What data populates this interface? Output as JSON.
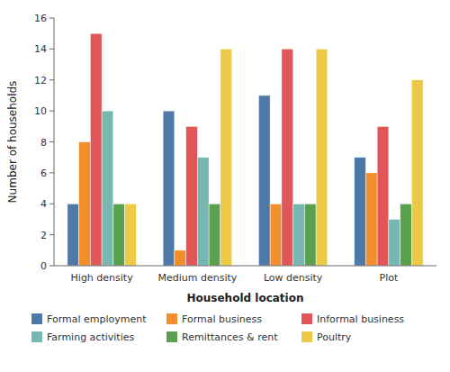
{
  "chart_data": {
    "type": "bar",
    "xlabel": "Household location",
    "ylabel": "Number of households",
    "categories": [
      "High density",
      "Medium density",
      "Low density",
      "Plot"
    ],
    "series": [
      {
        "name": "Formal employment",
        "values": [
          4,
          10,
          11,
          7
        ]
      },
      {
        "name": "Formal business",
        "values": [
          8,
          1,
          4,
          6
        ]
      },
      {
        "name": "Informal business",
        "values": [
          15,
          9,
          14,
          9
        ]
      },
      {
        "name": "Farming activities",
        "values": [
          10,
          7,
          4,
          3
        ]
      },
      {
        "name": "Remittances & rent",
        "values": [
          4,
          4,
          4,
          4
        ]
      },
      {
        "name": "Poultry",
        "values": [
          4,
          14,
          14,
          12
        ]
      }
    ],
    "ylim": [
      0,
      16
    ],
    "yticks": [
      0,
      2,
      4,
      6,
      8,
      10,
      12,
      14,
      16
    ],
    "grid": false,
    "legend": "bottom"
  }
}
